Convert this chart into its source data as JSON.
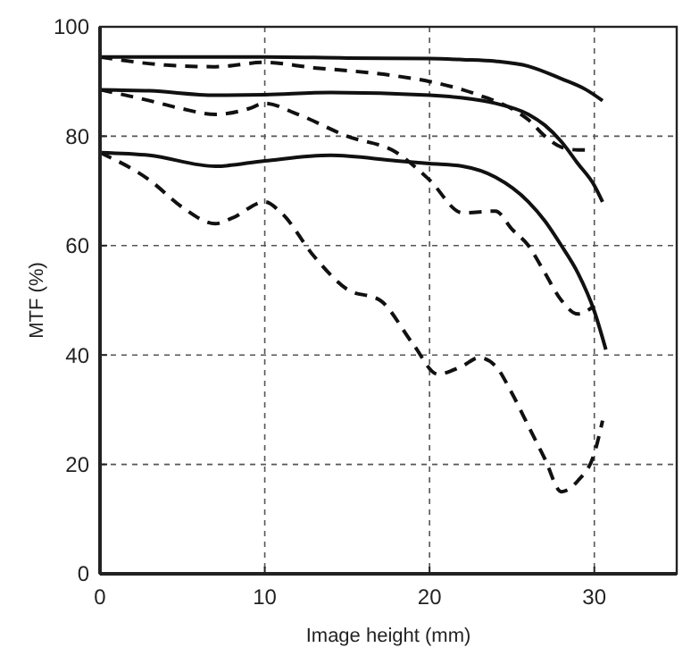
{
  "chart_data": {
    "type": "line",
    "xlabel": "Image height (mm)",
    "ylabel": "MTF (%)",
    "xlim": [
      0,
      35
    ],
    "ylim": [
      0,
      100
    ],
    "xticks": [
      0,
      10,
      20,
      30
    ],
    "yticks": [
      0,
      20,
      40,
      60,
      80,
      100
    ],
    "grid": true,
    "marker": "none",
    "series": [
      {
        "color": "#111111",
        "line_style": "solid",
        "x": [
          0,
          5,
          10,
          15,
          20,
          22,
          24,
          26,
          28,
          29.5,
          30.5
        ],
        "values": [
          94.5,
          94.5,
          94.5,
          94.3,
          94.2,
          94,
          93.7,
          92.8,
          90.5,
          88.5,
          86.5
        ]
      },
      {
        "color": "#111111",
        "line_style": "solid",
        "x": [
          0,
          3,
          7,
          10,
          14,
          20,
          22,
          24,
          26,
          27,
          28,
          29,
          30,
          30.5
        ],
        "values": [
          88.5,
          88.3,
          87.5,
          87.6,
          88,
          87.5,
          87,
          86,
          84,
          82,
          79,
          75,
          71,
          68
        ]
      },
      {
        "color": "#111111",
        "line_style": "solid",
        "x": [
          0,
          3,
          7,
          10,
          14,
          18,
          20,
          22,
          24,
          26,
          27,
          28,
          29,
          30,
          30.7
        ],
        "values": [
          77,
          76.5,
          74.5,
          75.5,
          76.5,
          75.5,
          75,
          74.5,
          72.5,
          68,
          64.5,
          60,
          55,
          48,
          41
        ]
      },
      {
        "color": "#111111",
        "line_style": "dashed",
        "x": [
          0,
          4,
          7,
          10,
          13,
          15,
          18,
          20,
          22,
          23,
          25,
          26,
          27,
          28,
          29,
          30
        ],
        "values": [
          94.5,
          93,
          92.7,
          93.5,
          92.5,
          92,
          91,
          90,
          88.5,
          87.5,
          85,
          83,
          80,
          78,
          77.5,
          77.5
        ]
      },
      {
        "color": "#111111",
        "line_style": "dashed",
        "x": [
          0,
          3,
          5,
          7,
          9,
          10,
          12,
          15,
          18,
          20,
          22,
          24,
          25,
          26,
          27,
          28,
          29,
          30
        ],
        "values": [
          88.5,
          86.5,
          85,
          84,
          85,
          86,
          84,
          80,
          77,
          72,
          66,
          66.3,
          63,
          60,
          55,
          50,
          47.5,
          49
        ]
      },
      {
        "color": "#111111",
        "line_style": "dashed",
        "x": [
          0,
          3,
          5,
          7,
          8,
          10,
          11,
          13,
          15,
          17,
          19,
          20.5,
          22,
          23,
          24,
          25,
          26,
          27,
          28,
          29,
          30,
          30.5
        ],
        "values": [
          77,
          72,
          67,
          64,
          65,
          68,
          66,
          58,
          52,
          50,
          42,
          36.5,
          38,
          39.5,
          38,
          33,
          27,
          21,
          15,
          17,
          22,
          28
        ]
      }
    ]
  }
}
